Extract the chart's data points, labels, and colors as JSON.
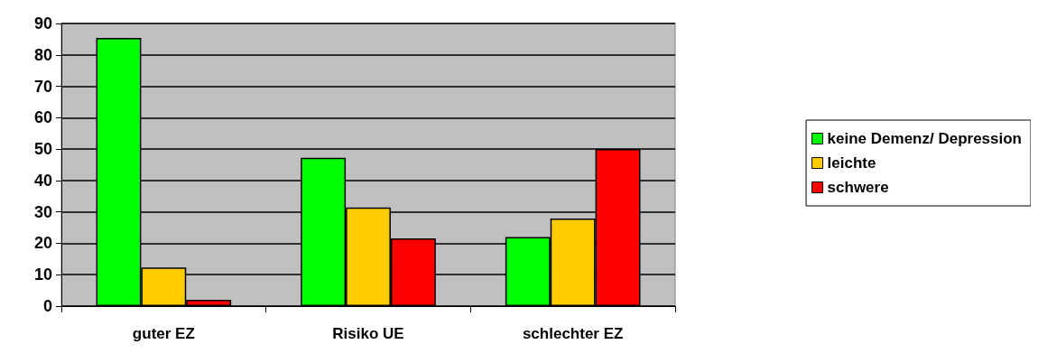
{
  "chart_data": {
    "type": "bar",
    "categories": [
      "guter EZ",
      "Risiko UE",
      "schlechter EZ"
    ],
    "series": [
      {
        "name": "keine Demenz/ Depression",
        "color": "#00ff00",
        "values": [
          85.4,
          47.2,
          22.0
        ]
      },
      {
        "name": "leichte",
        "color": "#ffcc00",
        "values": [
          12.3,
          31.4,
          27.9
        ]
      },
      {
        "name": "schwere",
        "color": "#ff0000",
        "values": [
          2.0,
          21.6,
          50.0
        ]
      }
    ],
    "ylim": [
      0,
      90
    ],
    "yticks": [
      0,
      10,
      20,
      30,
      40,
      50,
      60,
      70,
      80,
      90
    ],
    "grid": "y",
    "legend": "right"
  }
}
